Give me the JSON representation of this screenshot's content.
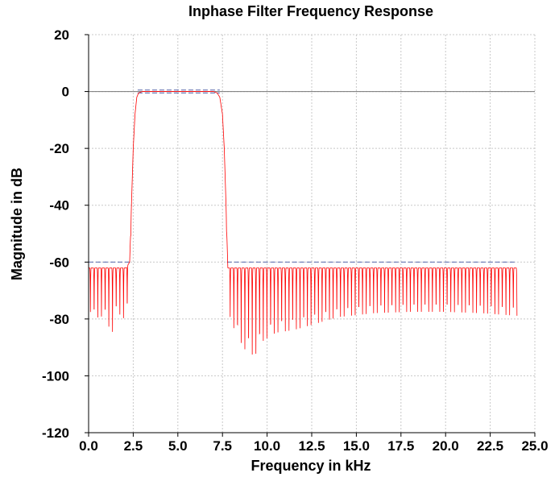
{
  "chart_data": {
    "type": "line",
    "title": "Inphase Filter Frequency Response",
    "xlabel": "Frequency in kHz",
    "ylabel": "Magnitude in dB",
    "xlim": [
      0,
      25
    ],
    "ylim": [
      -120,
      20
    ],
    "xticks": [
      0,
      2.5,
      5,
      7.5,
      10,
      12.5,
      15,
      17.5,
      20,
      22.5,
      25
    ],
    "xtick_labels": [
      "0.0",
      "2.5",
      "5.0",
      "7.5",
      "10.0",
      "12.5",
      "15.0",
      "17.5",
      "20.0",
      "22.5",
      "25.0"
    ],
    "yticks": [
      20,
      0,
      -20,
      -40,
      -60,
      -80,
      -100,
      -120
    ],
    "ytick_labels": [
      "20",
      "0",
      "-20",
      "-40",
      "-60",
      "-80",
      "-100",
      "-120"
    ],
    "grid": true,
    "colors": {
      "response": "#ff0000",
      "spec": "#5566aa",
      "grid": "#c8c8c8",
      "zero_line": "#777777"
    },
    "series": [
      {
        "role": "response",
        "x": [
          0,
          0.2,
          0.4,
          0.6,
          0.8,
          1.0,
          1.3,
          1.6,
          1.9,
          2.1,
          2.3,
          2.4,
          2.5,
          2.6,
          2.7,
          2.8,
          3.0,
          4.0,
          5.0,
          6.0,
          7.0,
          7.2,
          7.35,
          7.5,
          7.6,
          7.7,
          7.8,
          8.0,
          8.3,
          8.8,
          9.3,
          9.8,
          10.5,
          11.5,
          12.5,
          14.0,
          16.0,
          18.0,
          20.0,
          22.0,
          24.0
        ],
        "env": [
          -62,
          -62,
          -62,
          -62,
          -62,
          -62,
          -62,
          -62,
          -62,
          -62,
          -60,
          -40,
          -20,
          -8,
          -2,
          -0.5,
          0,
          0,
          0,
          0,
          0,
          -0.5,
          -2,
          -8,
          -20,
          -40,
          -62,
          -62,
          -62,
          -62,
          -62,
          -62,
          -62,
          -62,
          -62,
          -62,
          -62,
          -62,
          -62,
          -62,
          -62
        ],
        "floor": [
          -75,
          -83,
          -80,
          -82,
          -80,
          -82,
          -88,
          -78,
          -82,
          -80,
          -76,
          -40,
          -20,
          -8,
          -2,
          -0.5,
          0,
          0,
          0,
          0,
          0,
          -0.5,
          -2,
          -8,
          -20,
          -40,
          -77,
          -83,
          -88,
          -94,
          -96,
          -90,
          -87,
          -86,
          -84,
          -81,
          -79.5,
          -79,
          -79,
          -79.5,
          -80.5
        ]
      },
      {
        "role": "spec",
        "segments": [
          {
            "x": [
              0,
              2.4
            ],
            "y": [
              -60,
              -60
            ]
          },
          {
            "x": [
              2.75,
              7.35
            ],
            "y": [
              0.5,
              0.5
            ]
          },
          {
            "x": [
              2.75,
              7.35
            ],
            "y": [
              -0.5,
              -0.5
            ]
          },
          {
            "x": [
              7.75,
              24
            ],
            "y": [
              -60,
              -60
            ]
          }
        ]
      }
    ]
  }
}
